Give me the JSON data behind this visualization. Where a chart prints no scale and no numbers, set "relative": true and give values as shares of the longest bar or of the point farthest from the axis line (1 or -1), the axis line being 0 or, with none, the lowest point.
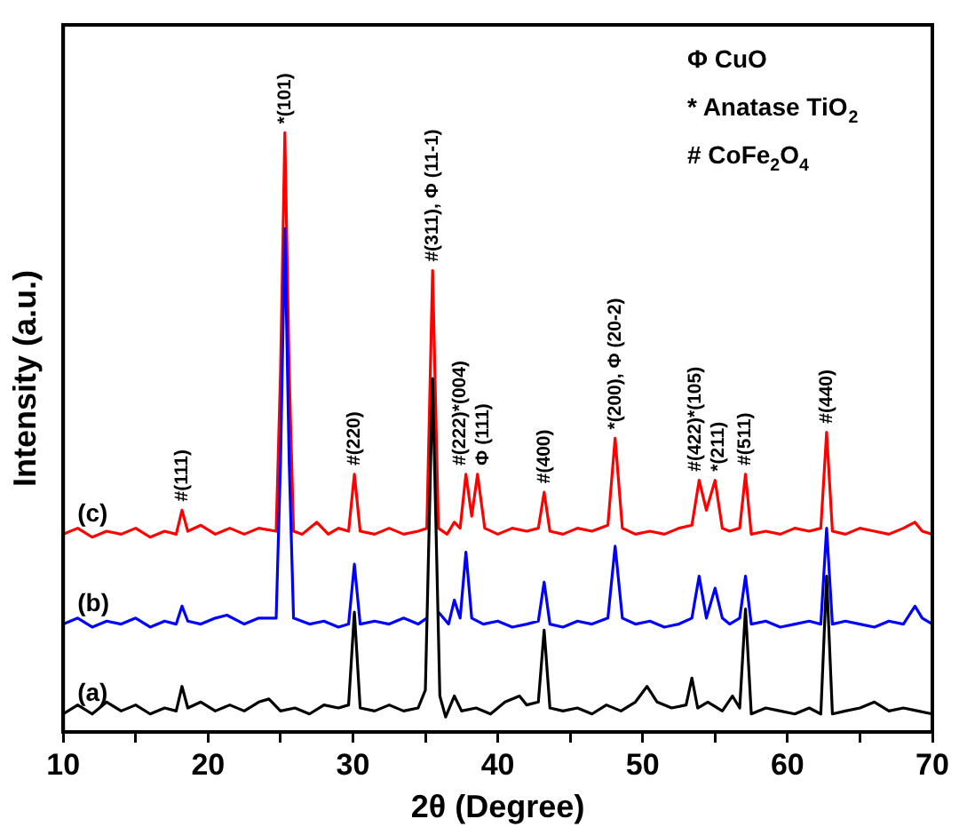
{
  "chart_data": {
    "type": "line",
    "relative": true,
    "xlabel": "2θ (Degree)",
    "ylabel": "Intensity (a.u.)",
    "xlim": [
      10,
      70
    ],
    "xticks": [
      10,
      {
        "value": 15,
        "label": null
      },
      20,
      {
        "value": 25,
        "label": null
      },
      30,
      {
        "value": 35,
        "label": null
      },
      40,
      {
        "value": 45,
        "label": null
      },
      50,
      {
        "value": 55,
        "label": null
      },
      60,
      {
        "value": 65,
        "label": null
      },
      70
    ],
    "grid": false,
    "legend": false,
    "marker": "none",
    "line_style": "solid",
    "series": [
      {
        "name": "(a)",
        "color": "#000000",
        "x": [
          10,
          11,
          12,
          13,
          14,
          15,
          16,
          17,
          17.8,
          18.2,
          18.6,
          19.5,
          20.5,
          21.5,
          22.5,
          23.5,
          24.2,
          25,
          26,
          27,
          28,
          29,
          29.7,
          30.1,
          30.5,
          31.5,
          32.5,
          33.5,
          34.5,
          35,
          35.5,
          36,
          36.4,
          37,
          37.5,
          38.5,
          39.5,
          40.5,
          41.5,
          42,
          42.8,
          43.2,
          43.6,
          44.5,
          45.5,
          46.5,
          47.5,
          48.5,
          49.5,
          50.3,
          51,
          52,
          53,
          53.4,
          53.8,
          54.5,
          55.5,
          56.2,
          56.7,
          57.1,
          57.5,
          58.5,
          59.5,
          60.5,
          61.5,
          62.3,
          62.7,
          63.1,
          64,
          65,
          66,
          67,
          68,
          69,
          70
        ],
        "values": [
          0.03,
          0.045,
          0.03,
          0.05,
          0.035,
          0.045,
          0.03,
          0.04,
          0.035,
          0.076,
          0.04,
          0.05,
          0.035,
          0.045,
          0.035,
          0.05,
          0.055,
          0.035,
          0.04,
          0.03,
          0.045,
          0.04,
          0.045,
          0.2,
          0.04,
          0.035,
          0.045,
          0.035,
          0.04,
          0.07,
          0.59,
          0.06,
          0.025,
          0.06,
          0.035,
          0.04,
          0.03,
          0.05,
          0.06,
          0.045,
          0.05,
          0.17,
          0.04,
          0.035,
          0.04,
          0.03,
          0.045,
          0.035,
          0.05,
          0.076,
          0.05,
          0.04,
          0.045,
          0.09,
          0.04,
          0.05,
          0.035,
          0.06,
          0.04,
          0.205,
          0.03,
          0.04,
          0.035,
          0.03,
          0.04,
          0.03,
          0.26,
          0.03,
          0.035,
          0.04,
          0.05,
          0.035,
          0.04,
          0.035,
          0.03
        ]
      },
      {
        "name": "(b)",
        "color": "#0000ff",
        "x": [
          10,
          11,
          12,
          13,
          14,
          15,
          16,
          17,
          17.8,
          18.2,
          18.6,
          19.5,
          20.5,
          21.3,
          22.5,
          23.5,
          24.7,
          25,
          25.3,
          25.6,
          25.9,
          27,
          28,
          29,
          29.7,
          30.1,
          30.5,
          31.5,
          32.5,
          33.5,
          34.5,
          35.1,
          35.5,
          35.9,
          36.6,
          37,
          37.4,
          37.8,
          38.2,
          39,
          40,
          41,
          42,
          42.8,
          43.2,
          43.6,
          44.5,
          45.5,
          46.5,
          47.6,
          48.1,
          48.6,
          49.5,
          50.5,
          51.5,
          52.5,
          53.4,
          53.9,
          54.4,
          55,
          55.5,
          56,
          56.7,
          57.1,
          57.5,
          58.5,
          59.5,
          60.5,
          61.5,
          62.3,
          62.7,
          63.1,
          64,
          65,
          66,
          67,
          68,
          68.8,
          69.3,
          70
        ],
        "values": [
          0.18,
          0.19,
          0.175,
          0.185,
          0.18,
          0.19,
          0.175,
          0.185,
          0.18,
          0.21,
          0.185,
          0.18,
          0.19,
          0.195,
          0.18,
          0.19,
          0.19,
          0.45,
          0.84,
          0.45,
          0.19,
          0.18,
          0.185,
          0.175,
          0.18,
          0.28,
          0.18,
          0.185,
          0.18,
          0.19,
          0.18,
          0.19,
          null,
          0.2,
          0.18,
          0.22,
          0.19,
          0.3,
          0.19,
          0.18,
          0.185,
          0.175,
          0.18,
          0.185,
          0.25,
          0.18,
          0.175,
          0.185,
          0.18,
          0.19,
          0.31,
          0.19,
          0.18,
          0.185,
          0.175,
          0.18,
          0.19,
          0.26,
          0.19,
          0.24,
          0.19,
          0.18,
          0.19,
          0.26,
          0.18,
          0.185,
          0.175,
          0.18,
          0.185,
          0.18,
          0.34,
          0.18,
          0.185,
          0.18,
          0.175,
          0.185,
          0.18,
          0.21,
          0.19,
          0.18
        ]
      },
      {
        "name": "(c)",
        "color": "#ff0000",
        "x": [
          10,
          11,
          12,
          13,
          14,
          15,
          16,
          17,
          17.8,
          18.2,
          18.6,
          19.5,
          20.5,
          21.5,
          22.5,
          23.5,
          24.7,
          25,
          25.3,
          25.6,
          25.9,
          26.5,
          27.5,
          28.3,
          29,
          29.7,
          30.1,
          30.5,
          31.5,
          32.5,
          33.5,
          34.5,
          35.1,
          35.5,
          35.9,
          36.5,
          37,
          37.4,
          37.8,
          38.2,
          38.6,
          39.1,
          40,
          41,
          42,
          42.8,
          43.2,
          43.6,
          44.5,
          45.5,
          46.5,
          47.6,
          48.1,
          48.6,
          49.5,
          50.5,
          51.5,
          52.5,
          53.4,
          53.9,
          54.4,
          55,
          55.5,
          56,
          56.7,
          57.1,
          57.5,
          58.5,
          59.5,
          60.5,
          61.5,
          62.3,
          62.7,
          63.1,
          64,
          65,
          66,
          67,
          68,
          68.8,
          69.3,
          70
        ],
        "values": [
          0.33,
          0.34,
          0.325,
          0.335,
          0.33,
          0.34,
          0.325,
          0.335,
          0.33,
          0.37,
          0.335,
          0.345,
          0.33,
          0.34,
          0.33,
          0.34,
          0.335,
          0.6,
          1,
          0.6,
          0.335,
          0.33,
          0.35,
          0.33,
          0.34,
          0.335,
          0.43,
          0.335,
          0.33,
          0.34,
          0.33,
          0.335,
          0.34,
          0.77,
          0.34,
          0.33,
          0.35,
          0.34,
          0.43,
          0.36,
          0.43,
          0.34,
          0.33,
          0.34,
          0.335,
          0.34,
          0.4,
          0.335,
          0.33,
          0.34,
          0.335,
          0.345,
          0.49,
          0.34,
          0.33,
          0.335,
          0.33,
          0.34,
          0.345,
          0.42,
          0.37,
          0.42,
          0.34,
          0.335,
          0.34,
          0.43,
          0.33,
          0.335,
          0.33,
          0.34,
          0.335,
          0.34,
          0.5,
          0.335,
          0.33,
          0.34,
          0.335,
          0.33,
          0.34,
          0.35,
          0.335,
          0.33
        ]
      }
    ],
    "annotations": [
      {
        "text": "#(111)",
        "x": 18.2,
        "y": 0.37
      },
      {
        "text": "*(101)",
        "x": 25.3,
        "y": 1
      },
      {
        "text": "#(220)",
        "x": 30.1,
        "y": 0.43
      },
      {
        "text": "#(311), Φ (11-1)",
        "x": 35.5,
        "y": 0.77
      },
      {
        "text": "#(222)*(004)",
        "x": 37.8,
        "y": 0.43
      },
      {
        "text": "Φ (111)",
        "x": 38.6,
        "y": 0.43
      },
      {
        "text": "#(400)",
        "x": 43.2,
        "y": 0.4
      },
      {
        "text": "*(200), Φ (20-2)",
        "x": 48.1,
        "y": 0.49
      },
      {
        "text": "#(422)*(105)",
        "x": 53.9,
        "y": 0.42
      },
      {
        "text": "*(211)",
        "x": 55,
        "y": 0.42
      },
      {
        "text": "#(511)",
        "x": 57.1,
        "y": 0.43
      },
      {
        "text": "#(440)",
        "x": 62.7,
        "y": 0.5
      },
      "Φ CuO",
      "* Anatase TiO$_{2}$",
      "# CoFe$_{2}$O$_{4}$"
    ]
  }
}
